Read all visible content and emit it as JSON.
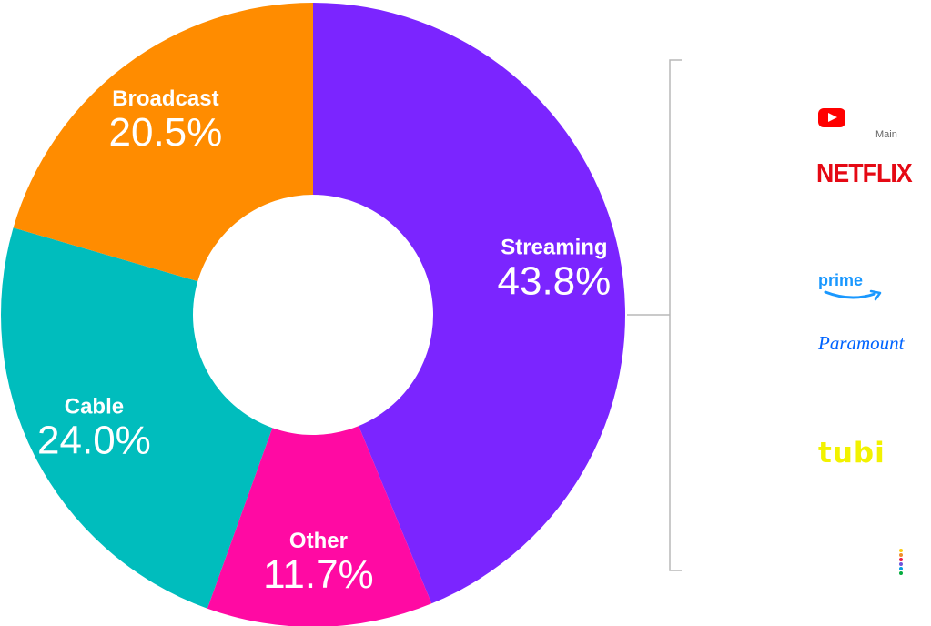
{
  "chart_data": {
    "type": "donut",
    "slices": [
      {
        "label": "Streaming",
        "value": 43.8,
        "display": "43.8%",
        "color": "#7b25ff"
      },
      {
        "label": "Other",
        "value": 11.7,
        "display": "11.7%",
        "color": "#ff0aa3"
      },
      {
        "label": "Cable",
        "value": 24.0,
        "display": "24.0%",
        "color": "#00bdbd"
      },
      {
        "label": "Broadcast",
        "value": 20.5,
        "display": "20.5%",
        "color": "#ff8c00"
      }
    ]
  },
  "streaming_breakdown": {
    "caption": "Main",
    "logos": [
      {
        "name": "youtube-logo-icon",
        "text": ""
      },
      {
        "name": "netflix-logo",
        "text": "NETFLIX"
      },
      {
        "name": "prime-video-logo",
        "text": "prime"
      },
      {
        "name": "paramount-logo",
        "text": "Paramount"
      },
      {
        "name": "tubi-logo",
        "text": "tubi"
      },
      {
        "name": "peacock-logo-icon",
        "text": ""
      }
    ]
  }
}
